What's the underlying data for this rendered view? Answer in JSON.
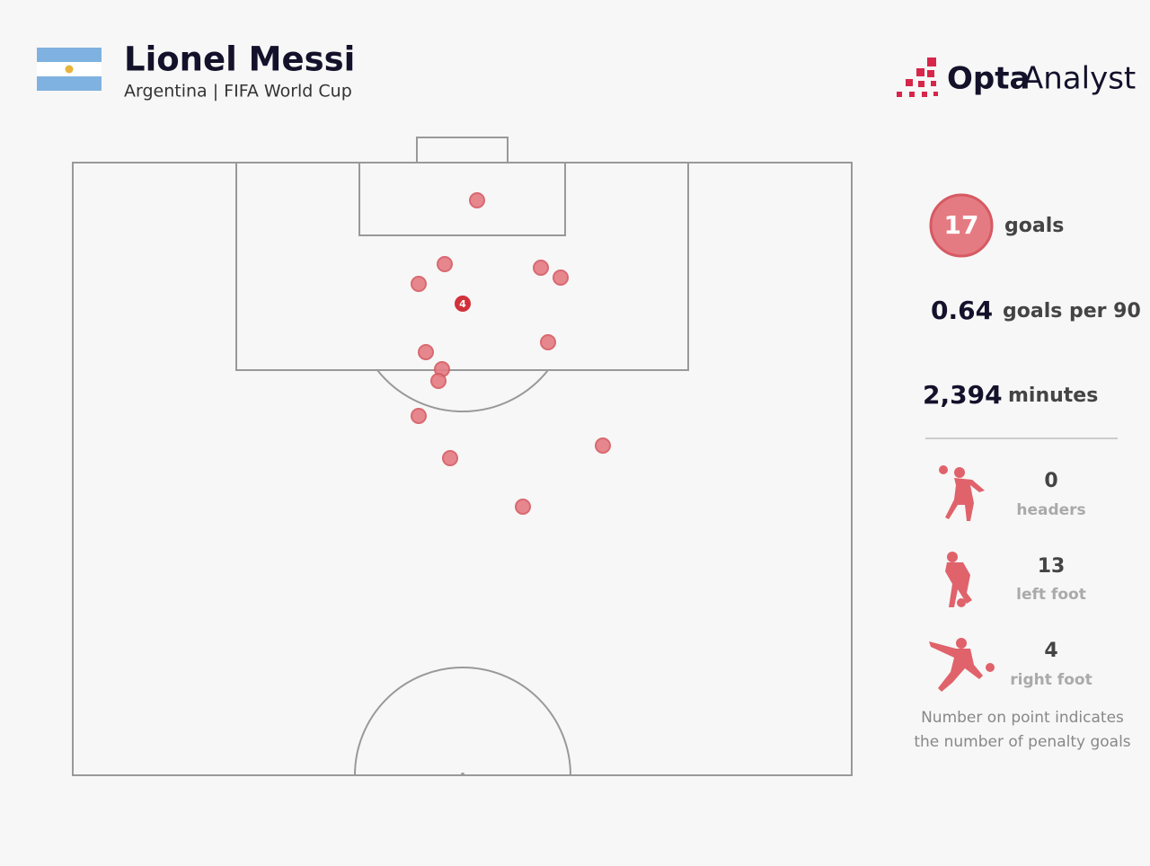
{
  "header": {
    "title": "Lionel Messi",
    "subtitle": "Argentina | FIFA World Cup"
  },
  "logo": {
    "brand": "Opta",
    "product": "Analyst"
  },
  "pitch": {
    "penalty_label": 4
  },
  "stats": {
    "goals": {
      "value": 17,
      "label": "goals"
    },
    "per90": {
      "value": 0.64,
      "label": "goals per 90"
    },
    "minutes": {
      "value": "2,394",
      "label": "minutes"
    },
    "breakdown": [
      {
        "value": 0,
        "label": "headers"
      },
      {
        "value": 13,
        "label": "left foot"
      },
      {
        "value": 4,
        "label": "right foot"
      }
    ],
    "note": [
      "Number on point indicates",
      "the number of penalty goals"
    ]
  }
}
